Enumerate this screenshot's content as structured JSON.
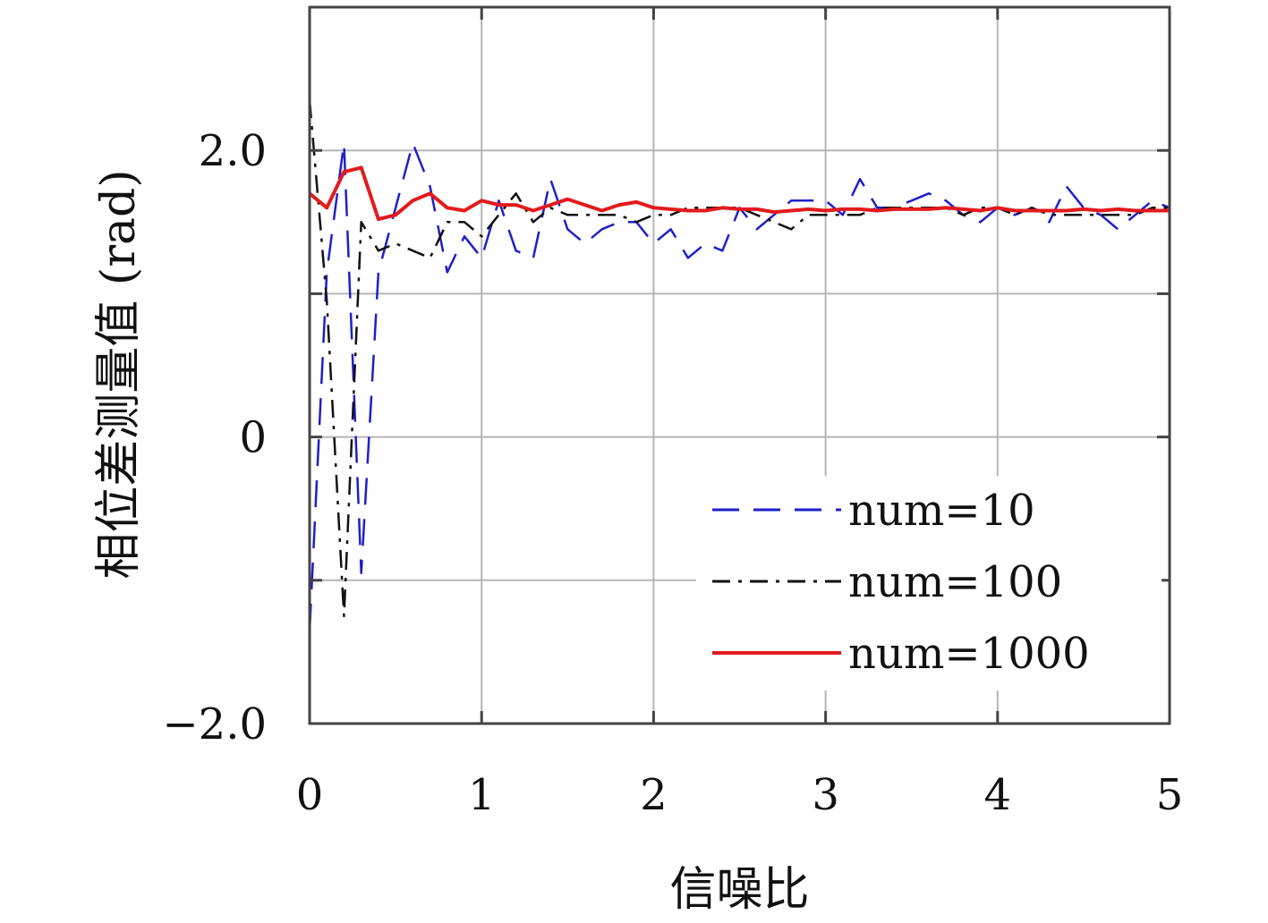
{
  "chart_data": {
    "type": "line",
    "xlabel": "信噪比",
    "ylabel": "相位差测量值 (rad)",
    "xlim": [
      0,
      5
    ],
    "ylim": [
      -2.0,
      3.0
    ],
    "x_ticks": [
      0,
      1,
      2,
      3,
      4,
      5
    ],
    "x_tick_labels": [
      "0",
      "1",
      "2",
      "3",
      "4",
      "5"
    ],
    "y_ticks": [
      -2.0,
      0,
      2.0
    ],
    "y_tick_labels": [
      "−2.0",
      "0",
      "2.0"
    ],
    "y_grid": [
      -2.0,
      -1.0,
      0,
      1.0,
      2.0,
      3.0
    ],
    "grid": true,
    "legend_position": "lower-right",
    "series": [
      {
        "name": "num=10",
        "color": "#1f1fcc",
        "dash": "dashed",
        "x": [
          0,
          0.1,
          0.2,
          0.3,
          0.4,
          0.5,
          0.6,
          0.7,
          0.8,
          0.9,
          1.0,
          1.1,
          1.2,
          1.3,
          1.4,
          1.5,
          1.6,
          1.7,
          1.8,
          1.9,
          2.0,
          2.1,
          2.2,
          2.3,
          2.4,
          2.5,
          2.6,
          2.7,
          2.8,
          2.9,
          3.0,
          3.1,
          3.2,
          3.3,
          3.4,
          3.5,
          3.6,
          3.7,
          3.8,
          3.9,
          4.0,
          4.1,
          4.2,
          4.3,
          4.4,
          4.5,
          4.6,
          4.7,
          4.8,
          4.9,
          5.0
        ],
        "y": [
          -1.35,
          1.15,
          2.05,
          -0.95,
          1.15,
          1.6,
          2.05,
          1.75,
          1.15,
          1.4,
          1.25,
          1.65,
          1.3,
          1.25,
          1.8,
          1.45,
          1.35,
          1.45,
          1.5,
          1.5,
          1.35,
          1.45,
          1.25,
          1.35,
          1.3,
          1.6,
          1.45,
          1.55,
          1.65,
          1.65,
          1.65,
          1.55,
          1.8,
          1.6,
          1.6,
          1.65,
          1.7,
          1.65,
          1.55,
          1.5,
          1.6,
          1.55,
          1.6,
          1.5,
          1.75,
          1.6,
          1.55,
          1.45,
          1.55,
          1.65,
          1.6
        ]
      },
      {
        "name": "num=100",
        "color": "#111111",
        "dash": "dash-dot",
        "x": [
          0,
          0.1,
          0.2,
          0.3,
          0.4,
          0.5,
          0.6,
          0.7,
          0.8,
          0.9,
          1.0,
          1.1,
          1.2,
          1.3,
          1.4,
          1.5,
          1.6,
          1.7,
          1.8,
          1.9,
          2.0,
          2.1,
          2.2,
          2.3,
          2.4,
          2.5,
          2.6,
          2.7,
          2.8,
          2.9,
          3.0,
          3.1,
          3.2,
          3.3,
          3.4,
          3.5,
          3.6,
          3.7,
          3.8,
          3.9,
          4.0,
          4.1,
          4.2,
          4.3,
          4.4,
          4.5,
          4.6,
          4.7,
          4.8,
          4.9,
          5.0
        ],
        "y": [
          2.35,
          0.95,
          -1.25,
          1.5,
          1.3,
          1.35,
          1.3,
          1.25,
          1.5,
          1.5,
          1.4,
          1.55,
          1.7,
          1.5,
          1.6,
          1.55,
          1.55,
          1.55,
          1.55,
          1.5,
          1.55,
          1.55,
          1.6,
          1.6,
          1.6,
          1.6,
          1.55,
          1.5,
          1.45,
          1.55,
          1.55,
          1.55,
          1.55,
          1.6,
          1.6,
          1.6,
          1.6,
          1.6,
          1.55,
          1.6,
          1.6,
          1.55,
          1.6,
          1.55,
          1.55,
          1.55,
          1.55,
          1.55,
          1.55,
          1.6,
          1.6
        ]
      },
      {
        "name": "num=1000",
        "color": "#e31a1c",
        "dash": "solid",
        "x": [
          0,
          0.1,
          0.2,
          0.3,
          0.4,
          0.5,
          0.6,
          0.7,
          0.8,
          0.9,
          1.0,
          1.1,
          1.2,
          1.3,
          1.4,
          1.5,
          1.6,
          1.7,
          1.8,
          1.9,
          2.0,
          2.1,
          2.2,
          2.3,
          2.4,
          2.5,
          2.6,
          2.7,
          2.8,
          2.9,
          3.0,
          3.1,
          3.2,
          3.3,
          3.4,
          3.5,
          3.6,
          3.7,
          3.8,
          3.9,
          4.0,
          4.1,
          4.2,
          4.3,
          4.4,
          4.5,
          4.6,
          4.7,
          4.8,
          4.9,
          5.0
        ],
        "y": [
          1.7,
          1.6,
          1.85,
          1.88,
          1.52,
          1.55,
          1.65,
          1.7,
          1.6,
          1.58,
          1.65,
          1.62,
          1.62,
          1.58,
          1.62,
          1.66,
          1.62,
          1.58,
          1.62,
          1.64,
          1.6,
          1.59,
          1.58,
          1.58,
          1.6,
          1.59,
          1.59,
          1.57,
          1.58,
          1.59,
          1.58,
          1.59,
          1.59,
          1.58,
          1.59,
          1.59,
          1.59,
          1.6,
          1.59,
          1.58,
          1.6,
          1.58,
          1.58,
          1.58,
          1.58,
          1.59,
          1.58,
          1.59,
          1.58,
          1.58,
          1.58
        ]
      }
    ]
  }
}
